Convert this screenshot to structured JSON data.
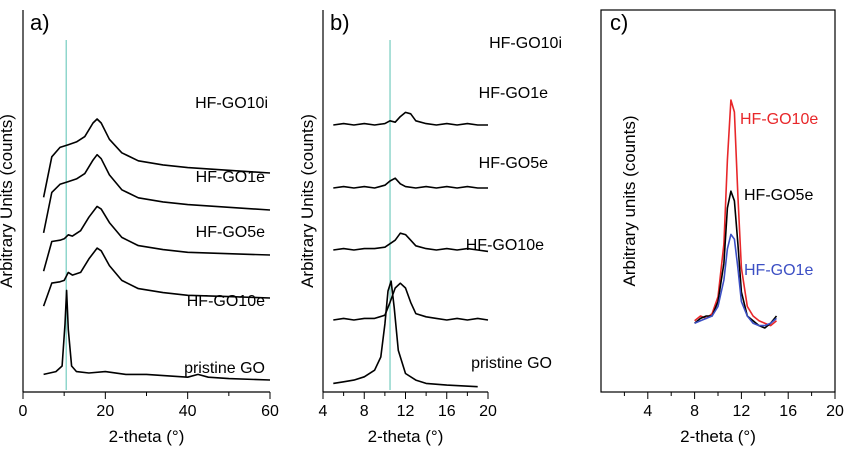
{
  "colors": {
    "black": "#000000",
    "red": "#e8272a",
    "blue": "#3c4fc4",
    "reference_line": "#7fd0c4"
  },
  "chart_data": [
    {
      "type": "line",
      "panel_label": "a)",
      "xlabel": "2-theta (°)",
      "ylabel": "Arbitrary Units (counts)",
      "xlim": [
        0,
        60
      ],
      "xticks": [
        "0",
        "20",
        "40",
        "60"
      ],
      "y_ticks_shown": false,
      "reference_line_x": 10.5,
      "series": [
        {
          "name": "HF-GO10i",
          "color": "#000000",
          "x": [
            5,
            7,
            9,
            11,
            13,
            15,
            17,
            18,
            19,
            21,
            24,
            28,
            34,
            40,
            50,
            60
          ],
          "y": [
            0.45,
            0.75,
            0.82,
            0.84,
            0.86,
            0.9,
            1.0,
            1.03,
            1.0,
            0.88,
            0.78,
            0.72,
            0.69,
            0.67,
            0.65,
            0.63
          ]
        },
        {
          "name": "HF-GO1e",
          "color": "#000000",
          "x": [
            5,
            7,
            9,
            11,
            13,
            15,
            17,
            18,
            19,
            21,
            24,
            28,
            34,
            40,
            50,
            60
          ],
          "y": [
            0.3,
            0.6,
            0.66,
            0.68,
            0.7,
            0.74,
            0.84,
            0.88,
            0.85,
            0.73,
            0.62,
            0.56,
            0.53,
            0.51,
            0.49,
            0.47
          ]
        },
        {
          "name": "HF-GO5e",
          "color": "#000000",
          "x": [
            5,
            7,
            9,
            10,
            11,
            12,
            14,
            16,
            18,
            19,
            21,
            24,
            28,
            34,
            40,
            50,
            60
          ],
          "y": [
            0.2,
            0.42,
            0.43,
            0.44,
            0.47,
            0.46,
            0.5,
            0.6,
            0.68,
            0.66,
            0.56,
            0.45,
            0.39,
            0.36,
            0.34,
            0.33,
            0.32
          ]
        },
        {
          "name": "HF-GO10e",
          "color": "#000000",
          "x": [
            5,
            7,
            9,
            10,
            11,
            12,
            14,
            16,
            18,
            19,
            21,
            24,
            28,
            34,
            40,
            50,
            60
          ],
          "y": [
            0.07,
            0.24,
            0.25,
            0.26,
            0.32,
            0.3,
            0.32,
            0.42,
            0.5,
            0.48,
            0.37,
            0.26,
            0.2,
            0.17,
            0.15,
            0.14,
            0.13
          ]
        },
        {
          "name": "pristine GO",
          "color": "#000000",
          "x": [
            5,
            8,
            9.5,
            10.2,
            10.6,
            11.0,
            11.8,
            13,
            16,
            20,
            25,
            30,
            35,
            40,
            42.5,
            45,
            50,
            60
          ],
          "y": [
            0.02,
            0.03,
            0.05,
            0.2,
            0.32,
            0.18,
            0.05,
            0.03,
            0.025,
            0.03,
            0.02,
            0.02,
            0.015,
            0.01,
            0.02,
            0.01,
            0.005,
            0.0
          ]
        }
      ]
    },
    {
      "type": "line",
      "panel_label": "b)",
      "xlabel": "2-theta (°)",
      "ylabel": "Arbitrary Units (counts)",
      "xlim": [
        4,
        20
      ],
      "xticks": [
        "4",
        "8",
        "12",
        "16",
        "20"
      ],
      "y_ticks_shown": false,
      "reference_line_x": 10.5,
      "series": [
        {
          "name": "HF-GO10i",
          "color": "#000000",
          "x": [
            5,
            6,
            7,
            8,
            9,
            10,
            10.5,
            11,
            11.5,
            12,
            12.5,
            13,
            14,
            15,
            16,
            17,
            18,
            19,
            20
          ],
          "y": [
            0.86,
            0.87,
            0.86,
            0.87,
            0.86,
            0.87,
            0.89,
            0.88,
            0.92,
            0.95,
            0.94,
            0.89,
            0.87,
            0.86,
            0.87,
            0.86,
            0.87,
            0.86,
            0.86
          ]
        },
        {
          "name": "HF-GO1e",
          "color": "#000000",
          "x": [
            5,
            6,
            7,
            8,
            9,
            10,
            10.5,
            11,
            11.5,
            12,
            13,
            14,
            15,
            16,
            17,
            18,
            19,
            20
          ],
          "y": [
            0.67,
            0.68,
            0.67,
            0.68,
            0.67,
            0.69,
            0.72,
            0.74,
            0.7,
            0.68,
            0.67,
            0.68,
            0.67,
            0.68,
            0.67,
            0.68,
            0.67,
            0.67
          ]
        },
        {
          "name": "HF-GO5e",
          "color": "#000000",
          "x": [
            5,
            6,
            7,
            8,
            9,
            10,
            11,
            11.5,
            12,
            12.5,
            13,
            14,
            15,
            16,
            17,
            18,
            19,
            20
          ],
          "y": [
            0.49,
            0.5,
            0.49,
            0.5,
            0.5,
            0.51,
            0.56,
            0.61,
            0.6,
            0.56,
            0.52,
            0.5,
            0.49,
            0.5,
            0.49,
            0.5,
            0.49,
            0.48
          ]
        },
        {
          "name": "HF-GO10e",
          "color": "#000000",
          "x": [
            5,
            6,
            7,
            8,
            9,
            10,
            10.5,
            11,
            11.5,
            12,
            12.5,
            13,
            14,
            15,
            16,
            17,
            18,
            19,
            20
          ],
          "y": [
            0.27,
            0.28,
            0.27,
            0.28,
            0.28,
            0.3,
            0.38,
            0.47,
            0.5,
            0.47,
            0.38,
            0.31,
            0.29,
            0.28,
            0.27,
            0.28,
            0.27,
            0.28,
            0.27
          ]
        },
        {
          "name": "pristine GO",
          "color": "#000000",
          "x": [
            5,
            6,
            7,
            8,
            9,
            9.6,
            10.0,
            10.3,
            10.6,
            10.9,
            11.3,
            12,
            13,
            14,
            16,
            19
          ],
          "y": [
            0.02,
            0.025,
            0.03,
            0.04,
            0.06,
            0.1,
            0.2,
            0.3,
            0.33,
            0.25,
            0.12,
            0.05,
            0.03,
            0.02,
            0.015,
            0.01
          ]
        }
      ]
    },
    {
      "type": "line",
      "panel_label": "c)",
      "xlabel": "2-theta (°)",
      "ylabel": "Arbitrary units (counts)",
      "xlim": [
        0,
        20
      ],
      "xticks": [
        "4",
        "8",
        "12",
        "16",
        "20"
      ],
      "y_ticks_shown": false,
      "series": [
        {
          "name": "HF-GO10e",
          "color": "#e8272a",
          "x": [
            8,
            8.5,
            9,
            9.5,
            10,
            10.5,
            10.8,
            11.1,
            11.4,
            11.7,
            12,
            12.5,
            13,
            13.5,
            14,
            14.5,
            15
          ],
          "y": [
            0.08,
            0.1,
            0.09,
            0.11,
            0.18,
            0.4,
            0.75,
            1.0,
            0.95,
            0.6,
            0.3,
            0.14,
            0.1,
            0.08,
            0.07,
            0.06,
            0.08
          ]
        },
        {
          "name": "HF-GO5e",
          "color": "#000000",
          "x": [
            8,
            8.5,
            9,
            9.5,
            10,
            10.5,
            10.8,
            11.1,
            11.4,
            11.7,
            12,
            12.5,
            13,
            13.5,
            14,
            14.5,
            15
          ],
          "y": [
            0.07,
            0.09,
            0.1,
            0.1,
            0.16,
            0.32,
            0.55,
            0.62,
            0.58,
            0.4,
            0.2,
            0.1,
            0.08,
            0.06,
            0.05,
            0.07,
            0.1
          ]
        },
        {
          "name": "HF-GO1e",
          "color": "#3c4fc4",
          "x": [
            8,
            8.5,
            9,
            9.5,
            10,
            10.5,
            10.8,
            11.1,
            11.4,
            11.7,
            12,
            12.5,
            13,
            13.5,
            14,
            14.5,
            15
          ],
          "y": [
            0.07,
            0.08,
            0.09,
            0.1,
            0.14,
            0.25,
            0.38,
            0.44,
            0.42,
            0.3,
            0.16,
            0.1,
            0.07,
            0.06,
            0.06,
            0.07,
            0.09
          ]
        }
      ]
    }
  ]
}
